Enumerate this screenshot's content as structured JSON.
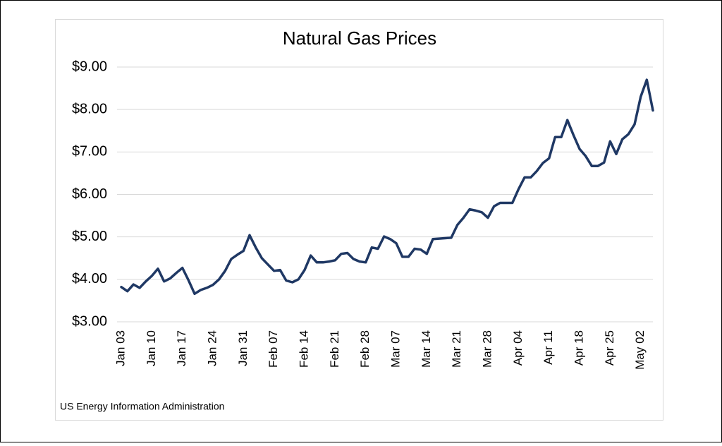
{
  "chart_data": {
    "type": "line",
    "title": "Natural Gas Prices",
    "source": "US Energy Information Administration",
    "categories": [
      "Jan 03",
      null,
      null,
      null,
      null,
      "Jan 10",
      null,
      null,
      null,
      null,
      "Jan 17",
      null,
      null,
      null,
      null,
      "Jan 24",
      null,
      null,
      null,
      null,
      "Jan 31",
      null,
      null,
      null,
      null,
      "Feb 07",
      null,
      null,
      null,
      null,
      "Feb 14",
      null,
      null,
      null,
      null,
      "Feb 21",
      null,
      null,
      null,
      null,
      "Feb 28",
      null,
      null,
      null,
      null,
      "Mar 07",
      null,
      null,
      null,
      null,
      "Mar 14",
      null,
      null,
      null,
      null,
      "Mar 21",
      null,
      null,
      null,
      null,
      "Mar 28",
      null,
      null,
      null,
      null,
      "Apr 04",
      null,
      null,
      null,
      null,
      "Apr 11",
      null,
      null,
      null,
      null,
      "Apr 18",
      null,
      null,
      null,
      null,
      "Apr 25",
      null,
      null,
      null,
      null,
      "May 02",
      null,
      null
    ],
    "series": [
      {
        "color": "#1f3864",
        "values": [
          3.82,
          3.72,
          3.88,
          3.8,
          3.95,
          4.08,
          4.25,
          3.95,
          4.02,
          4.15,
          4.27,
          3.98,
          3.66,
          3.75,
          3.8,
          3.87,
          4.0,
          4.2,
          4.48,
          4.58,
          4.67,
          5.04,
          4.75,
          4.5,
          4.35,
          4.2,
          4.22,
          3.97,
          3.93,
          4.0,
          4.22,
          4.56,
          4.4,
          4.4,
          4.42,
          4.45,
          4.6,
          4.62,
          4.48,
          4.42,
          4.4,
          4.75,
          4.72,
          5.01,
          4.95,
          4.85,
          4.53,
          4.53,
          4.72,
          4.7,
          4.6,
          4.95,
          4.96,
          4.97,
          4.98,
          5.28,
          5.45,
          5.65,
          5.62,
          5.58,
          5.45,
          5.72,
          5.8,
          5.8,
          5.8,
          6.12,
          6.4,
          6.4,
          6.55,
          6.74,
          6.85,
          7.35,
          7.35,
          7.75,
          7.4,
          7.07,
          6.9,
          6.67,
          6.67,
          6.75,
          7.25,
          6.95,
          7.3,
          7.42,
          7.65,
          8.3,
          8.7,
          7.98
        ]
      }
    ],
    "ylim": [
      3,
      9
    ],
    "yticks": [
      {
        "value": 3,
        "label": "$3.00"
      },
      {
        "value": 4,
        "label": "$4.00"
      },
      {
        "value": 5,
        "label": "$5.00"
      },
      {
        "value": 6,
        "label": "$6.00"
      },
      {
        "value": 7,
        "label": "$7.00"
      },
      {
        "value": 8,
        "label": "$8.00"
      },
      {
        "value": 9,
        "label": "$9.00"
      }
    ],
    "grid": true
  }
}
